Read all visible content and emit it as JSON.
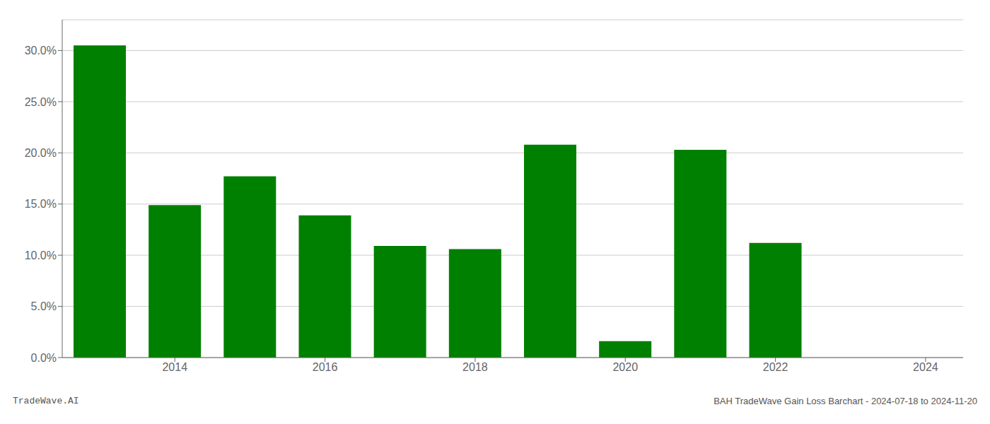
{
  "chart_data": {
    "type": "bar",
    "x": [
      2013,
      2014,
      2015,
      2016,
      2017,
      2018,
      2019,
      2020,
      2021,
      2022,
      2023
    ],
    "values": [
      0.305,
      0.149,
      0.177,
      0.139,
      0.109,
      0.106,
      0.208,
      0.016,
      0.203,
      0.112,
      0.0
    ],
    "color": "#008000",
    "xlim": [
      2012.5,
      2024.5
    ],
    "xticks": [
      2014,
      2016,
      2018,
      2020,
      2022,
      2024
    ],
    "ylim": [
      0,
      0.33
    ],
    "yticks": [
      {
        "value": 0.0,
        "label": "0.0%"
      },
      {
        "value": 0.05,
        "label": "5.0%"
      },
      {
        "value": 0.1,
        "label": "10.0%"
      },
      {
        "value": 0.15,
        "label": "15.0%"
      },
      {
        "value": 0.2,
        "label": "20.0%"
      },
      {
        "value": 0.25,
        "label": "25.0%"
      },
      {
        "value": 0.3,
        "label": "30.0%"
      }
    ],
    "grid": true,
    "annotations": [
      "TradeWave.AI",
      "BAH TradeWave Gain Loss Barchart - 2024-07-18 to 2024-11-20"
    ]
  }
}
